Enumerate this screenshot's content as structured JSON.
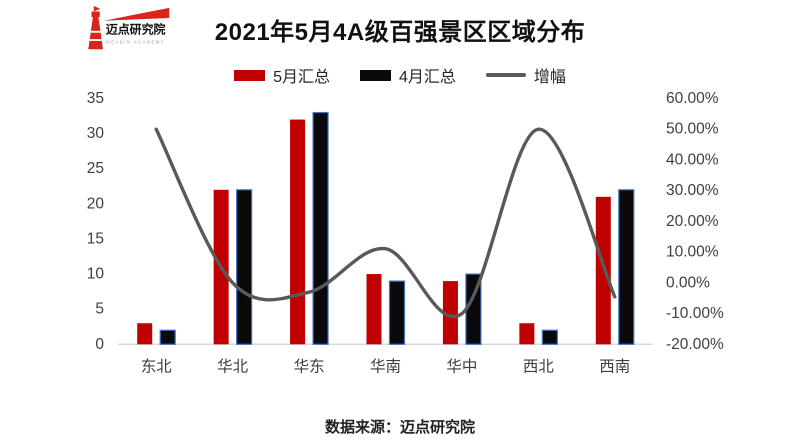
{
  "header": {
    "logo": {
      "name": "迈点研究院",
      "subtitle": "MEADIN ACADEMY",
      "brand_color": "#d9261c"
    },
    "title": "2021年5月4A级百强景区区域分布"
  },
  "footer": {
    "source": "数据来源：迈点研究院"
  },
  "chart_data": {
    "type": "bar",
    "subtype": "grouped-bars-with-smooth-line",
    "title": "2021年5月4A级百强景区区域分布",
    "categories": [
      "东北",
      "华北",
      "华东",
      "华南",
      "华中",
      "西北",
      "西南"
    ],
    "series": [
      {
        "name": "5月汇总",
        "type": "bar",
        "color": "#c00000",
        "values": [
          3,
          22,
          32,
          10,
          9,
          3,
          21
        ]
      },
      {
        "name": "4月汇总",
        "type": "bar",
        "color": "#0a0a0a",
        "border_color": "#4472c4",
        "values": [
          2,
          22,
          33,
          9,
          10,
          2,
          22
        ]
      },
      {
        "name": "增幅",
        "type": "line",
        "smooth": true,
        "color": "#595959",
        "values_percent": [
          50.0,
          0.0,
          -3.03,
          11.11,
          -10.0,
          50.0,
          -4.55
        ]
      }
    ],
    "left_axis": {
      "min": 0,
      "max": 35,
      "step": 5,
      "ticks": [
        "0",
        "5",
        "10",
        "15",
        "20",
        "25",
        "30",
        "35"
      ]
    },
    "right_axis": {
      "min": -20,
      "max": 60,
      "step": 10,
      "ticks": [
        "-20.00%",
        "-10.00%",
        "0.00%",
        "10.00%",
        "20.00%",
        "30.00%",
        "40.00%",
        "50.00%",
        "60.00%"
      ]
    },
    "grid": false,
    "legend_position": "top",
    "axis_text_color": "#3f3f3f",
    "baseline_color": "#d9d9d9"
  }
}
